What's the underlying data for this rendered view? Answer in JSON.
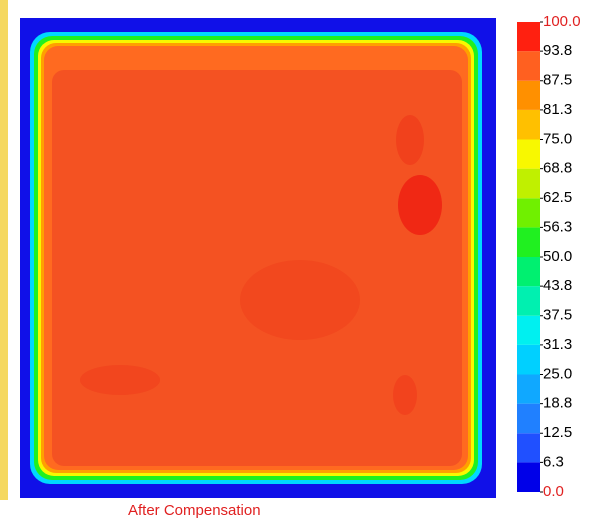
{
  "chart_data": {
    "type": "heatmap",
    "caption": "After Compensation",
    "colorbar_lim": [
      0,
      100
    ],
    "colorbar_ticks": [
      {
        "value": 0,
        "label": "0.0"
      },
      6.3,
      12.5,
      18.8,
      {
        "value": 25,
        "label": "25.0"
      },
      31.3,
      37.5,
      43.8,
      {
        "value": 50,
        "label": "50.0"
      },
      56.3,
      62.5,
      68.8,
      {
        "value": 75,
        "label": "75.0"
      },
      81.3,
      87.5,
      93.8,
      {
        "value": 100,
        "label": "100.0"
      }
    ],
    "colors": [
      "#0000e8",
      "#2050ff",
      "#2080ff",
      "#10a8ff",
      "#00d0ff",
      "#00f0f0",
      "#00f0b0",
      "#00f070",
      "#20f020",
      "#70f000",
      "#c0f000",
      "#f8f800",
      "#ffc000",
      "#ff9000",
      "#ff6020",
      "#ff2010"
    ]
  }
}
